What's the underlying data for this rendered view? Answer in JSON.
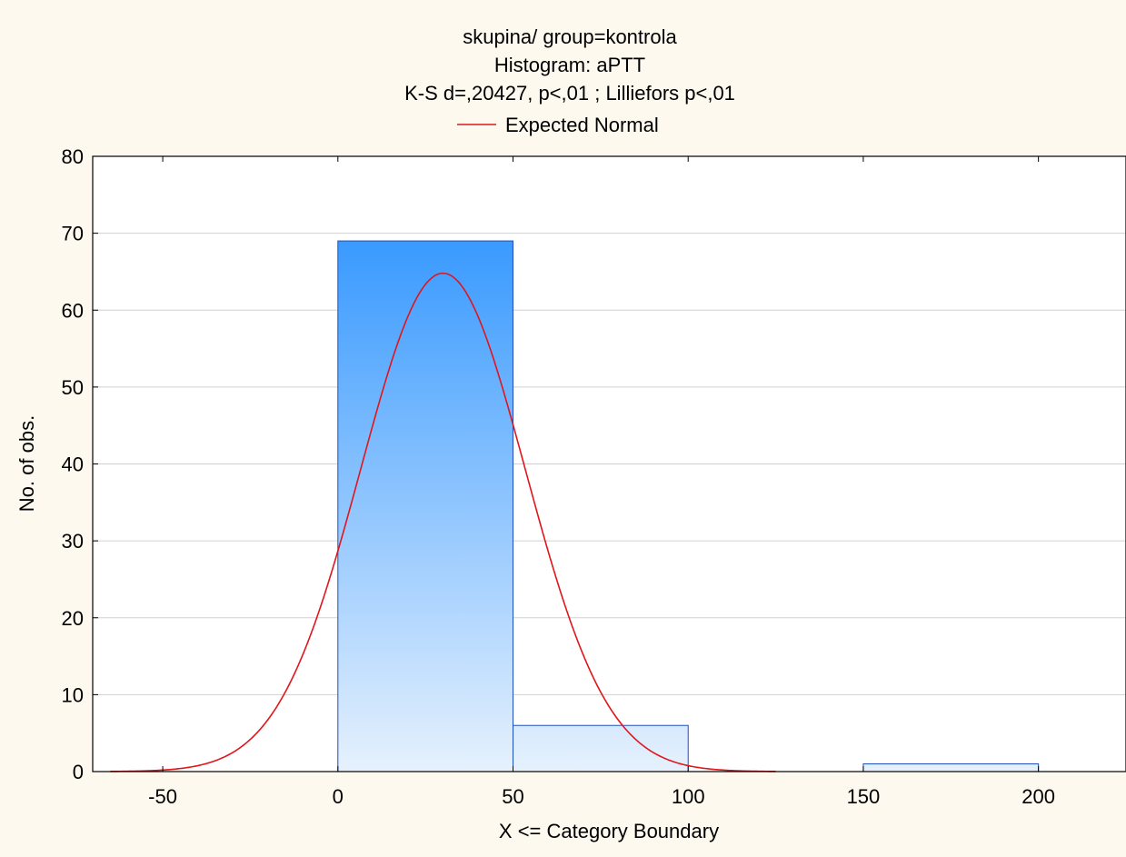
{
  "chart_data": {
    "type": "bar",
    "title_lines": [
      "skupina/ group=kontrola",
      "Histogram: aPTT",
      "K-S d=,20427, p<,01 ; Lilliefors p<,01"
    ],
    "legend": {
      "label": "Expected Normal",
      "color": "#e0161c",
      "placement": "top-center"
    },
    "xlabel": "X <= Category Boundary",
    "ylabel": "No. of obs.",
    "xlim": [
      -70,
      225
    ],
    "ylim": [
      0,
      80
    ],
    "x_ticks": [
      -50,
      0,
      50,
      100,
      150,
      200
    ],
    "y_ticks": [
      0,
      10,
      20,
      30,
      40,
      50,
      60,
      70,
      80
    ],
    "grid": "horizontal",
    "bins": [
      {
        "from": 0,
        "to": 50,
        "count": 69
      },
      {
        "from": 50,
        "to": 100,
        "count": 6
      },
      {
        "from": 100,
        "to": 150,
        "count": 0
      },
      {
        "from": 150,
        "to": 200,
        "count": 1
      }
    ],
    "expected_normal": {
      "mean": 30,
      "sd": 23.5,
      "peak": 64.8
    },
    "colors": {
      "bar_top": "#1e8cff",
      "bar_bottom": "#e6f1fd",
      "bar_edge": "#1f4fbf",
      "background": "#fdf9ee",
      "plot_background": "#ffffff",
      "grid": "#d0d0d0"
    }
  }
}
